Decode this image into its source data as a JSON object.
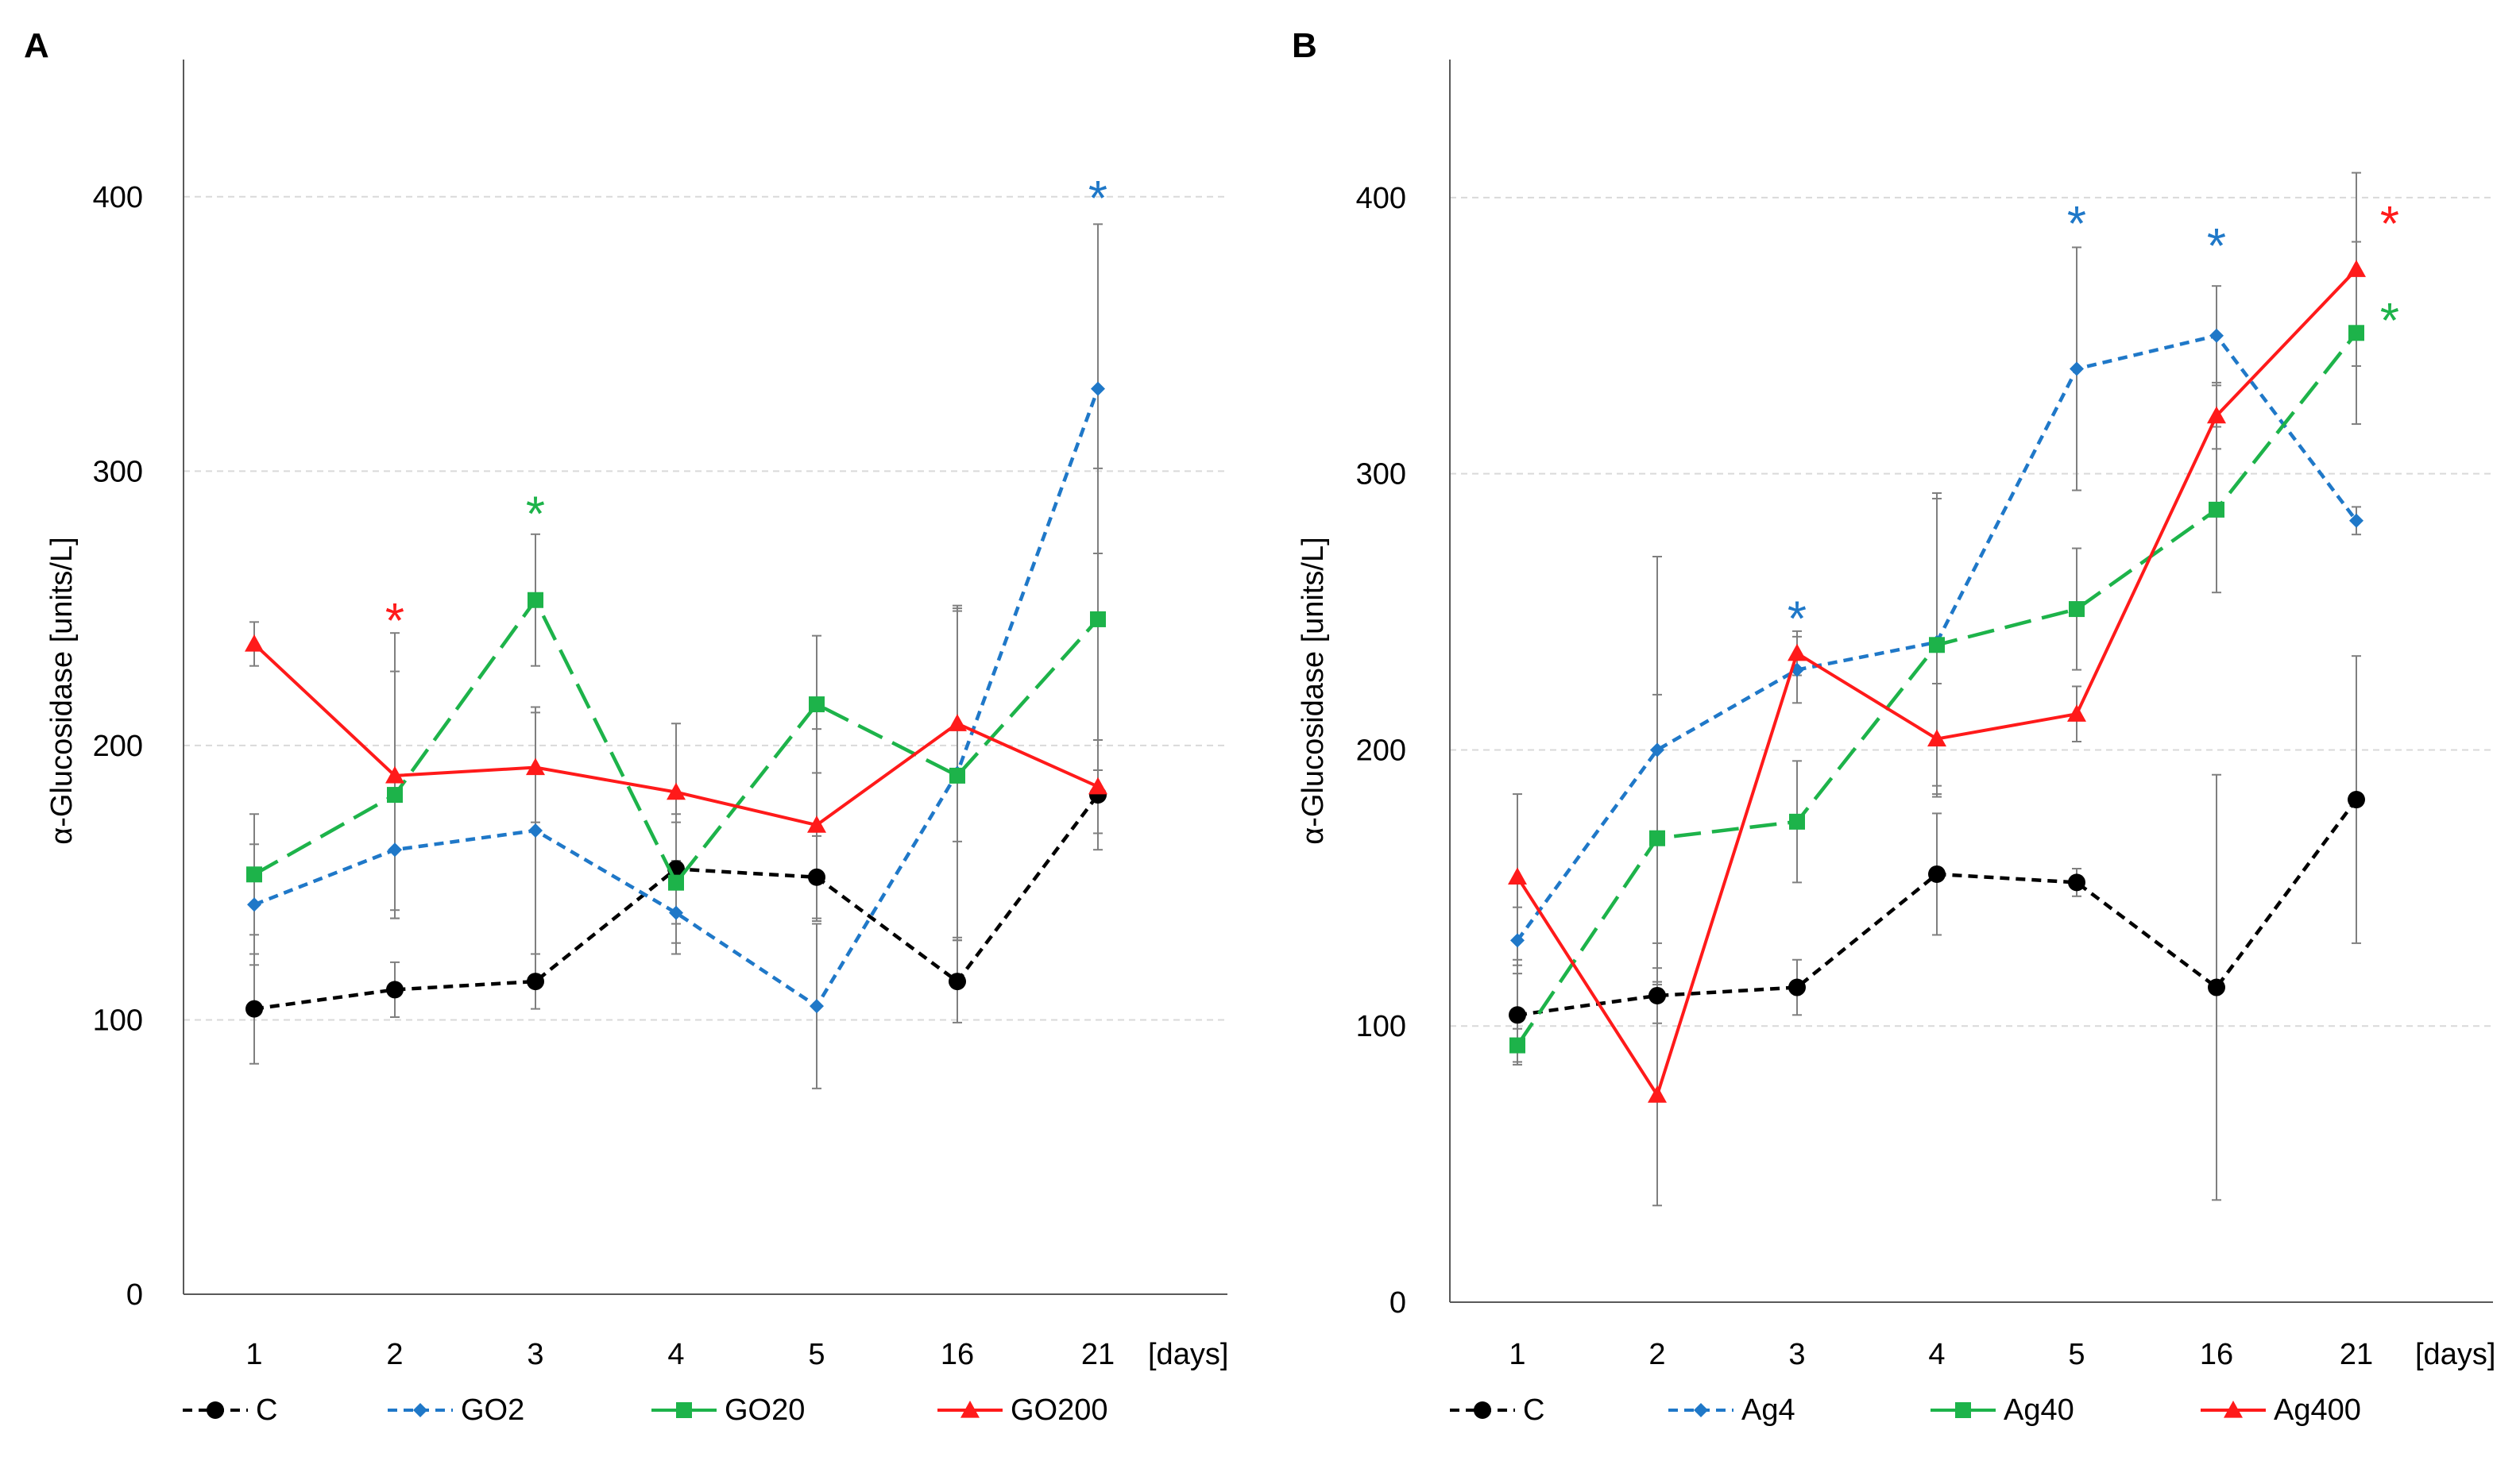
{
  "figure": {
    "panel_labels": [
      "A",
      "B"
    ]
  },
  "colors": {
    "C": "#000000",
    "blue": "#1f78c8",
    "green": "#1db34a",
    "red": "#ff1a1a",
    "grid": "#d9d9d9",
    "axis": "#595959",
    "errorbar": "#7f7f7f"
  },
  "chart_data": [
    {
      "panel": "A",
      "type": "line",
      "title": "",
      "xlabel": "[days]",
      "ylabel": "α-Glucosidase   [units/L]",
      "categories": [
        "1",
        "2",
        "3",
        "4",
        "5",
        "16",
        "21"
      ],
      "ylim": [
        0,
        450
      ],
      "yticks": [
        0,
        100,
        200,
        300,
        400
      ],
      "grid": true,
      "legend": "bottom",
      "series": [
        {
          "name": "C",
          "color": "#000000",
          "dash": "short",
          "marker": "circle",
          "values": [
            104,
            111,
            114,
            155,
            152,
            114,
            182
          ],
          "err": [
            20,
            10,
            10,
            20,
            15,
            15,
            20
          ]
        },
        {
          "name": "GO2",
          "color": "#1f78c8",
          "dash": "short",
          "marker": "diamond",
          "values": [
            142,
            162,
            169,
            139,
            105,
            190,
            330
          ],
          "err": [
            22,
            22,
            45,
            15,
            30,
            60,
            60
          ]
        },
        {
          "name": "GO20",
          "color": "#1db34a",
          "dash": "long",
          "marker": "square",
          "values": [
            153,
            182,
            253,
            150,
            215,
            189,
            246
          ],
          "err": [
            22,
            45,
            24,
            22,
            25,
            60,
            55
          ]
        },
        {
          "name": "GO200",
          "color": "#ff1a1a",
          "dash": "solid",
          "marker": "triangle",
          "values": [
            237,
            189,
            192,
            183,
            171,
            208,
            185
          ],
          "err": [
            8,
            52,
            20,
            25,
            35,
            43,
            17
          ]
        }
      ],
      "annotations": [
        {
          "text": "*",
          "series": "GO200",
          "x": "2",
          "y": 248
        },
        {
          "text": "*",
          "series": "GO20",
          "x": "3",
          "y": 287
        },
        {
          "text": "*",
          "series": "GO2",
          "x": "21",
          "y": 402
        }
      ]
    },
    {
      "panel": "B",
      "type": "line",
      "title": "",
      "xlabel": "[days]",
      "ylabel": "α-Glucosidase   [units/L]",
      "categories": [
        "1",
        "2",
        "3",
        "4",
        "5",
        "16",
        "21"
      ],
      "ylim": [
        0,
        450
      ],
      "yticks": [
        0,
        100,
        200,
        300,
        400
      ],
      "grid": true,
      "legend": "bottom",
      "series": [
        {
          "name": "C",
          "color": "#000000",
          "dash": "short",
          "marker": "circle",
          "values": [
            104,
            111,
            114,
            155,
            152,
            114,
            182
          ],
          "err": [
            18,
            10,
            10,
            22,
            5,
            77,
            52
          ]
        },
        {
          "name": "Ag4",
          "color": "#1f78c8",
          "dash": "short",
          "marker": "diamond",
          "values": [
            131,
            200,
            229,
            239,
            338,
            350,
            283
          ],
          "err": [
            12,
            70,
            12,
            52,
            44,
            18,
            5
          ]
        },
        {
          "name": "Ag40",
          "color": "#1db34a",
          "dash": "long",
          "marker": "square",
          "values": [
            93,
            168,
            174,
            238,
            251,
            287,
            351
          ],
          "err": [
            6,
            52,
            22,
            55,
            22,
            30,
            33
          ]
        },
        {
          "name": "Ag400",
          "color": "#ff1a1a",
          "dash": "solid",
          "marker": "triangle",
          "values": [
            154,
            75,
            235,
            204,
            213,
            321,
            374
          ],
          "err": [
            30,
            40,
            8,
            20,
            10,
            12,
            35
          ]
        }
      ],
      "annotations": [
        {
          "text": "*",
          "series": "Ag4",
          "x": "3",
          "y": 250
        },
        {
          "text": "*",
          "series": "Ag4",
          "x": "5",
          "y": 393
        },
        {
          "text": "*",
          "series": "Ag4",
          "x": "16",
          "y": 385
        },
        {
          "text": "*",
          "series": "Ag400",
          "x": "21",
          "y": 393
        },
        {
          "text": "*",
          "series": "Ag40",
          "x": "21",
          "y": 358
        }
      ]
    }
  ]
}
